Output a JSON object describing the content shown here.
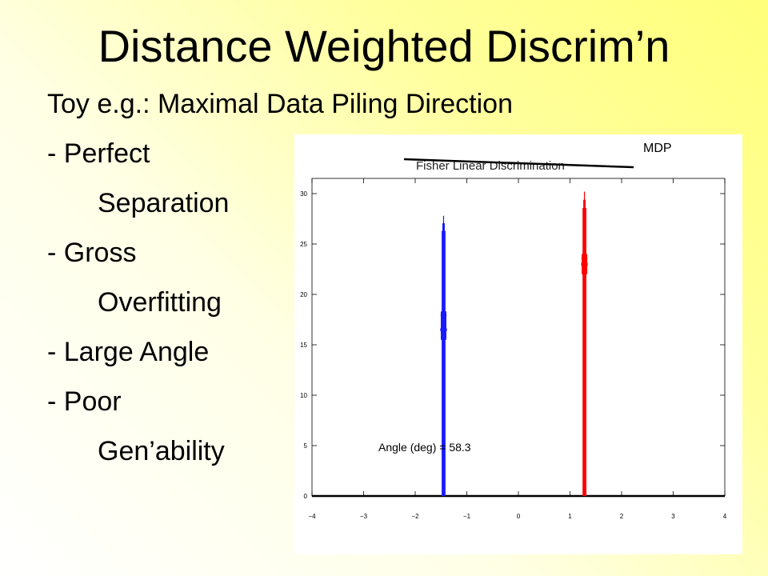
{
  "slide": {
    "title": "Distance Weighted Discrim’n",
    "bullets": [
      "Toy e.g.:  Maximal Data Piling Direction",
      "- Perfect",
      "Separation",
      "- Gross",
      "Overfitting",
      "- Large Angle",
      "- Poor",
      "Gen’ability"
    ],
    "colors": {
      "background_start": "#ffff7a",
      "background_end": "#ffffff"
    }
  },
  "figure": {
    "corner_label": "MDP",
    "struck_caption": "Fisher Linear Discrimination",
    "annotation": "Angle (deg) = 58.3"
  },
  "chart_data": {
    "type": "line",
    "xlim": [
      -4,
      4
    ],
    "ylim": [
      0,
      30
    ],
    "x_ticks": [
      "−4",
      "−3",
      "−2",
      "−1",
      "0",
      "1",
      "2",
      "3",
      "4"
    ],
    "y_ticks": [
      "0",
      "5",
      "10",
      "15",
      "20",
      "25",
      "30"
    ],
    "x_tick_values": [
      -4,
      -3,
      -2,
      -1,
      0,
      1,
      2,
      3,
      4
    ],
    "y_tick_values": [
      0,
      5,
      10,
      15,
      20,
      25,
      30
    ],
    "grid": false,
    "series": [
      {
        "color": "#1a1aff",
        "x_center": -1.45,
        "peak": 27.8,
        "dense_low": 15.5,
        "dense_high": 18.3,
        "marker_y": 16.5
      },
      {
        "color": "#ff0000",
        "x_center": 1.28,
        "peak": 30.2,
        "dense_low": 22.0,
        "dense_high": 24.0,
        "marker_y": 23.0
      }
    ],
    "baseline_y": 0
  }
}
